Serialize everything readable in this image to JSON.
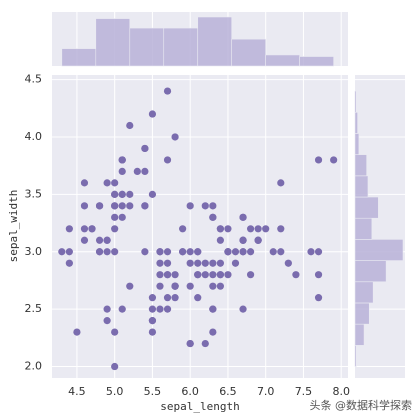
{
  "chart_data": {
    "type": "scatter",
    "xlabel": "sepal_length",
    "ylabel": "sepal_width",
    "watermark": "头条 @数据科学探索",
    "color": "#7a6cae",
    "hist_color": "#b8b1d8",
    "grid": true,
    "xlim": [
      4.17,
      8.09
    ],
    "ylim": [
      1.9,
      4.54
    ],
    "xticks": [
      4.5,
      {
        "value": 5,
        "label": "5.0"
      },
      5.5,
      {
        "value": 6,
        "label": "6.0"
      },
      6.5,
      {
        "value": 7,
        "label": "7.0"
      },
      7.5,
      {
        "value": 8,
        "label": "8.0"
      }
    ],
    "yticks": [
      {
        "value": 2,
        "label": "2.0"
      },
      2.5,
      {
        "value": 3,
        "label": "3.0"
      },
      3.5,
      {
        "value": 4,
        "label": "4.0"
      },
      4.5
    ],
    "x": [
      5.1,
      4.9,
      4.7,
      4.6,
      5.0,
      5.4,
      4.6,
      5.0,
      4.4,
      4.9,
      5.4,
      4.8,
      4.8,
      4.3,
      5.8,
      5.7,
      5.4,
      5.1,
      5.7,
      5.1,
      5.4,
      5.1,
      4.6,
      5.1,
      4.8,
      5.0,
      5.0,
      5.2,
      5.2,
      4.7,
      4.8,
      5.4,
      5.2,
      5.5,
      4.9,
      5.0,
      5.5,
      4.9,
      4.4,
      5.1,
      5.0,
      4.5,
      4.4,
      5.0,
      5.1,
      4.8,
      5.1,
      4.6,
      5.3,
      5.0,
      7.0,
      6.4,
      6.9,
      5.5,
      6.5,
      5.7,
      6.3,
      4.9,
      6.6,
      5.2,
      5.0,
      5.9,
      6.0,
      6.1,
      5.6,
      6.7,
      5.6,
      5.8,
      6.2,
      5.6,
      5.9,
      6.1,
      6.3,
      6.1,
      6.4,
      6.6,
      6.8,
      6.7,
      6.0,
      5.7,
      5.5,
      5.5,
      5.8,
      6.0,
      5.4,
      6.0,
      6.7,
      6.3,
      5.6,
      5.5,
      5.5,
      6.1,
      5.8,
      5.0,
      5.6,
      5.7,
      5.7,
      6.2,
      5.1,
      5.7,
      6.3,
      5.8,
      7.1,
      6.3,
      6.5,
      7.6,
      4.9,
      7.3,
      6.7,
      7.2,
      6.5,
      6.4,
      6.8,
      5.7,
      5.8,
      6.4,
      6.5,
      7.7,
      7.7,
      6.0,
      6.9,
      5.6,
      7.7,
      6.3,
      6.7,
      7.2,
      6.2,
      6.1,
      6.4,
      7.2,
      7.4,
      7.9,
      6.4,
      6.3,
      6.1,
      7.7,
      6.3,
      6.4,
      6.0,
      6.9,
      6.7,
      6.9,
      5.8,
      6.8,
      6.7,
      6.7,
      6.3,
      6.5,
      6.2,
      5.9
    ],
    "y": [
      3.5,
      3.0,
      3.2,
      3.1,
      3.6,
      3.9,
      3.4,
      3.4,
      2.9,
      3.1,
      3.7,
      3.4,
      3.0,
      3.0,
      4.0,
      4.4,
      3.9,
      3.5,
      3.8,
      3.8,
      3.4,
      3.7,
      3.6,
      3.3,
      3.4,
      3.0,
      3.4,
      3.5,
      3.4,
      3.2,
      3.1,
      3.4,
      4.1,
      4.2,
      3.1,
      3.2,
      3.5,
      3.6,
      3.0,
      3.4,
      3.5,
      2.3,
      3.2,
      3.5,
      3.8,
      3.0,
      3.8,
      3.2,
      3.7,
      3.3,
      3.2,
      3.2,
      3.1,
      2.3,
      2.8,
      2.8,
      3.3,
      2.4,
      2.9,
      2.7,
      2.0,
      3.0,
      2.2,
      2.9,
      2.9,
      3.1,
      3.0,
      2.7,
      2.2,
      2.5,
      3.2,
      2.8,
      2.5,
      2.8,
      2.9,
      3.0,
      2.8,
      3.0,
      2.9,
      2.6,
      2.4,
      2.4,
      2.7,
      2.7,
      3.0,
      3.4,
      3.1,
      2.3,
      3.0,
      2.5,
      2.6,
      3.0,
      2.6,
      2.3,
      2.7,
      3.0,
      2.9,
      2.9,
      2.5,
      2.8,
      3.3,
      2.7,
      3.0,
      2.9,
      3.0,
      3.0,
      2.5,
      2.9,
      2.5,
      3.6,
      3.2,
      2.7,
      3.0,
      2.5,
      2.8,
      3.2,
      3.0,
      3.8,
      2.6,
      2.2,
      3.2,
      2.8,
      2.8,
      2.7,
      3.3,
      3.2,
      2.8,
      3.0,
      2.8,
      3.0,
      2.8,
      3.8,
      2.8,
      2.8,
      2.6,
      3.0,
      3.4,
      3.1,
      3.0,
      3.1,
      3.1,
      3.1,
      2.7,
      3.2,
      3.3,
      3.0,
      2.5,
      3.0,
      3.4,
      3.0
    ],
    "marginal_x": {
      "type": "histogram",
      "bins": [
        4.3,
        4.75,
        5.2,
        5.65,
        6.1,
        6.55,
        7.0,
        7.45,
        7.9
      ],
      "counts": [
        11,
        30,
        24,
        24,
        31,
        17,
        7,
        6
      ]
    },
    "marginal_y": {
      "type": "histogram",
      "bins": [
        2.0,
        2.1846,
        2.3692,
        2.5538,
        2.7385,
        2.9231,
        3.1077,
        3.2923,
        3.4769,
        3.6615,
        3.8462,
        4.0308,
        4.2154,
        4.4
      ],
      "counts": [
        1,
        7,
        11,
        14,
        24,
        37,
        13,
        18,
        10,
        9,
        3,
        2,
        1
      ]
    }
  }
}
